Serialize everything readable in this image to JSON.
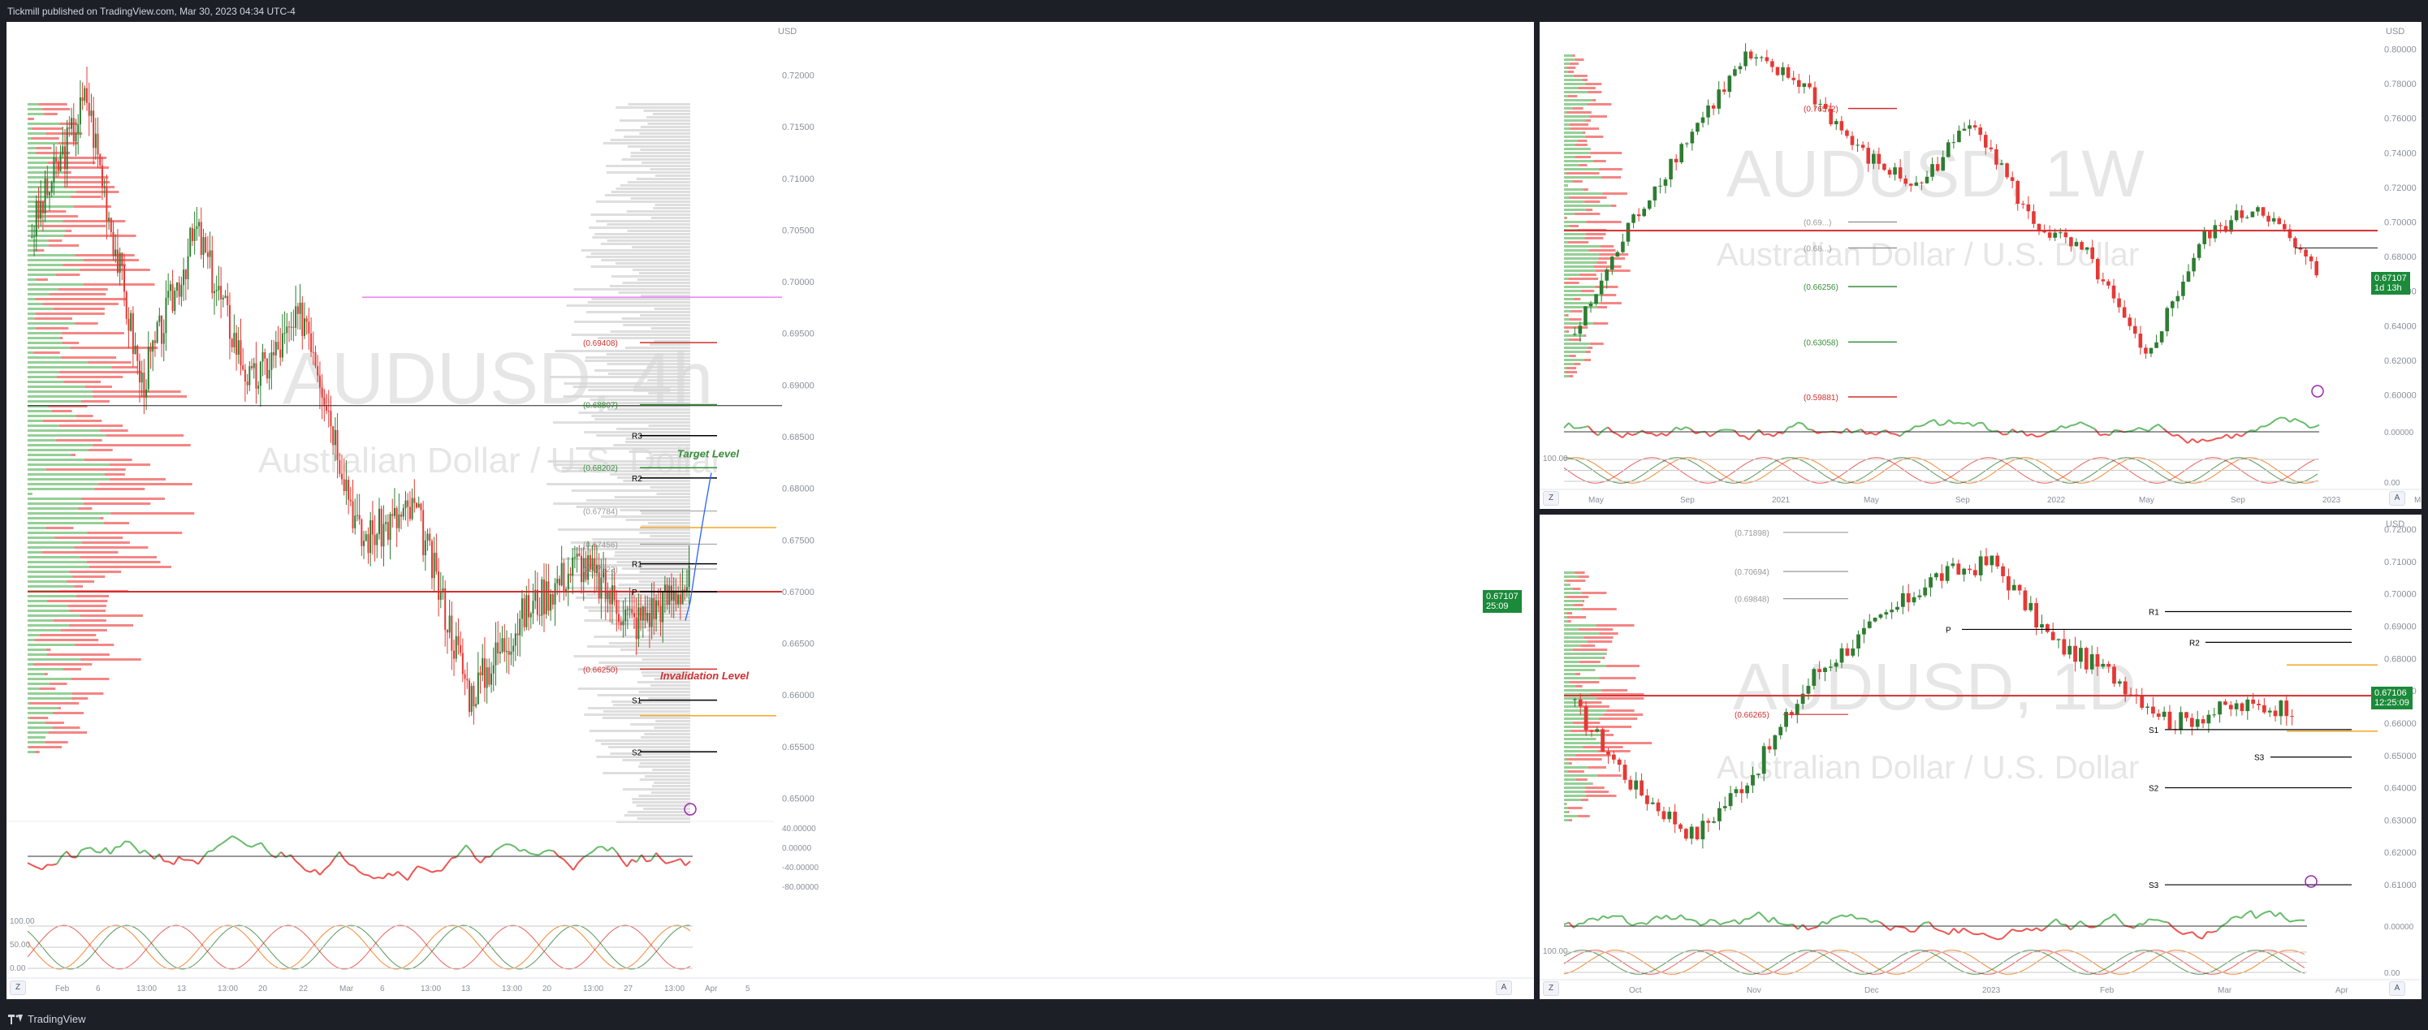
{
  "header": {
    "text": "Tickmill published on TradingView.com, Mar 30, 2023 04:34 UTC-4"
  },
  "footer": {
    "brand": "TradingView"
  },
  "colors": {
    "up": "#2e7d32",
    "down": "#e53935",
    "green_level": "#388e3c",
    "red_level": "#d32f2f",
    "orange_level": "#f5a623",
    "magenta_level": "#e040fb",
    "blue_proj": "#2962ff",
    "badge": "#1b8a3a"
  },
  "panes": {
    "main": {
      "symbol": "AUDUSD, 4h",
      "name": "Australian Dollar / U.S. Dollar",
      "currency": "USD",
      "price_badge": "0.67107",
      "timer": "25:09",
      "price_scale": [
        "0.72000",
        "0.71500",
        "0.71000",
        "0.70500",
        "0.70000",
        "0.69500",
        "0.69000",
        "0.68500",
        "0.68000",
        "0.67500",
        "0.67000",
        "0.66500",
        "0.66000",
        "0.65500",
        "0.65000"
      ],
      "osc_scale": [
        "40.00000",
        "0.00000",
        "-40.00000",
        "-80.00000"
      ],
      "stoch_scale": [
        "100.00",
        "50.00",
        "0.00"
      ],
      "time_labels": [
        "Feb",
        "6",
        "13:00",
        "13",
        "13:00",
        "20",
        "22",
        "Mar",
        "6",
        "13:00",
        "13",
        "13:00",
        "20",
        "13:00",
        "27",
        "13:00",
        "Apr",
        "5"
      ],
      "levels": [
        "(0.69408)",
        "(0.68807)",
        "R3",
        "(0.68202)",
        "R2",
        "(0.67784)",
        "(0.67456)",
        "R1",
        "(0.67223)",
        "P",
        "(0.66250)",
        "S1",
        "S2"
      ],
      "annotations": {
        "target": "Target Level",
        "invalidation": "Invalidation Level"
      },
      "buttons": [
        "Z",
        "A"
      ]
    },
    "weekly": {
      "symbol": "AUDUSD, 1W",
      "name": "Australian Dollar / U.S. Dollar",
      "currency": "USD",
      "price_badge": "0.67107",
      "timer": "1d 13h",
      "price_scale": [
        "0.80000",
        "0.78000",
        "0.76000",
        "0.74000",
        "0.72000",
        "0.70000",
        "0.68000",
        "0.66000",
        "0.64000",
        "0.62000",
        "0.60000"
      ],
      "osc_scale": [
        "0.00000"
      ],
      "stoch_scale": [
        "100.00",
        "0.00"
      ],
      "time_labels": [
        "May",
        "Sep",
        "2021",
        "May",
        "Sep",
        "2022",
        "May",
        "Sep",
        "2023",
        "May"
      ],
      "levels": [
        "(0.76572)",
        "(0.69...)",
        "(0.68...)",
        "(0.66256)",
        "(0.63058)",
        "(0.59881)"
      ],
      "buttons": [
        "Z",
        "A"
      ]
    },
    "daily": {
      "symbol": "AUDUSD, 1D",
      "name": "Australian Dollar / U.S. Dollar",
      "currency": "USD",
      "price_badge": "0.67106",
      "timer": "12:25:09",
      "price_scale": [
        "0.72000",
        "0.71000",
        "0.70000",
        "0.69000",
        "0.68000",
        "0.67000",
        "0.66000",
        "0.65000",
        "0.64000",
        "0.63000",
        "0.62000",
        "0.61000"
      ],
      "osc_scale": [
        "0.00000"
      ],
      "stoch_scale": [
        "100.00",
        "0.00"
      ],
      "time_labels": [
        "Oct",
        "Nov",
        "Dec",
        "2023",
        "Feb",
        "Mar",
        "Apr"
      ],
      "levels": [
        "(0.71898)",
        "(0.70694)",
        "(0.69848)",
        "R1",
        "P",
        "R2",
        "(0.66265)",
        "S1",
        "S3",
        "S2",
        "S3"
      ],
      "buttons": [
        "Z",
        "A"
      ]
    }
  }
}
